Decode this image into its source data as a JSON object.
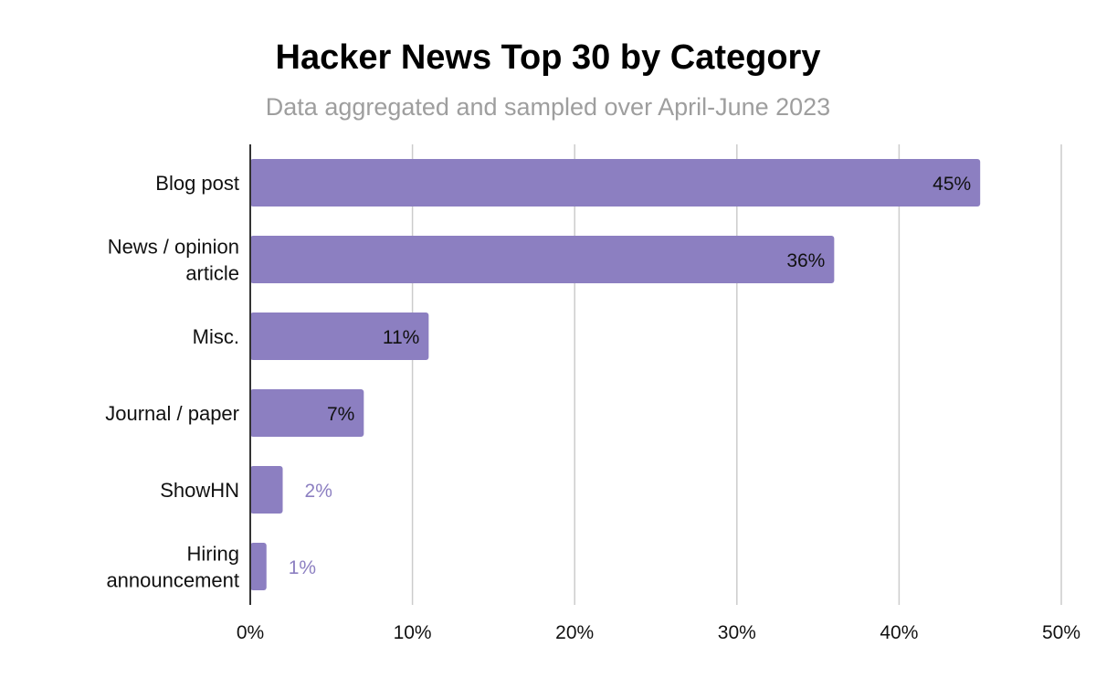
{
  "chart_data": {
    "type": "bar",
    "orientation": "horizontal",
    "title": "Hacker News Top 30 by Category",
    "subtitle": "Data aggregated and sampled over April-June 2023",
    "categories": [
      [
        "Blog post"
      ],
      [
        "News / opinion",
        "article"
      ],
      [
        "Misc."
      ],
      [
        "Journal / paper"
      ],
      [
        "ShowHN"
      ],
      [
        "Hiring",
        "announcement"
      ]
    ],
    "values": [
      45,
      36,
      11,
      7,
      2,
      1
    ],
    "value_labels": [
      "45%",
      "36%",
      "11%",
      "7%",
      "2%",
      "1%"
    ],
    "xlim": [
      0,
      50
    ],
    "x_ticks": [
      0,
      10,
      20,
      30,
      40,
      50
    ],
    "x_tick_labels": [
      "0%",
      "10%",
      "20%",
      "30%",
      "40%",
      "50%"
    ],
    "grid": true,
    "legend": "none",
    "colors": {
      "bar": "#8c7fc1",
      "label_inside": "#111111",
      "label_outside": "#8c7fc1",
      "gridline": "#cccccc",
      "axis": "#333333"
    }
  }
}
